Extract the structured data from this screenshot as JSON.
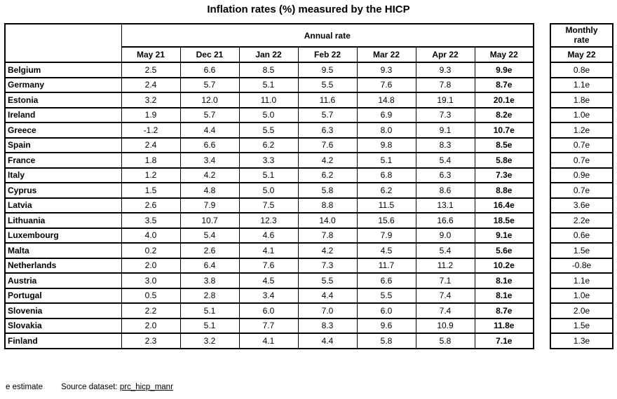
{
  "title": "Inflation rates (%) measured by the HICP",
  "table": {
    "annual_header": "Annual rate",
    "monthly_header": "Monthly rate",
    "annual_columns": [
      "May 21",
      "Dec 21",
      "Jan 22",
      "Feb 22",
      "Mar 22",
      "Apr 22",
      "May 22"
    ],
    "monthly_column": "May 22",
    "rows": [
      {
        "country": "Belgium",
        "annual": [
          "2.5",
          "6.6",
          "8.5",
          "9.5",
          "9.3",
          "9.3",
          "9.9e"
        ],
        "monthly": "0.8e"
      },
      {
        "country": "Germany",
        "annual": [
          "2.4",
          "5.7",
          "5.1",
          "5.5",
          "7.6",
          "7.8",
          "8.7e"
        ],
        "monthly": "1.1e"
      },
      {
        "country": "Estonia",
        "annual": [
          "3.2",
          "12.0",
          "11.0",
          "11.6",
          "14.8",
          "19.1",
          "20.1e"
        ],
        "monthly": "1.8e"
      },
      {
        "country": "Ireland",
        "annual": [
          "1.9",
          "5.7",
          "5.0",
          "5.7",
          "6.9",
          "7.3",
          "8.2e"
        ],
        "monthly": "1.0e"
      },
      {
        "country": "Greece",
        "annual": [
          "-1.2",
          "4.4",
          "5.5",
          "6.3",
          "8.0",
          "9.1",
          "10.7e"
        ],
        "monthly": "1.2e"
      },
      {
        "country": "Spain",
        "annual": [
          "2.4",
          "6.6",
          "6.2",
          "7.6",
          "9.8",
          "8.3",
          "8.5e"
        ],
        "monthly": "0.7e"
      },
      {
        "country": "France",
        "annual": [
          "1.8",
          "3.4",
          "3.3",
          "4.2",
          "5.1",
          "5.4",
          "5.8e"
        ],
        "monthly": "0.7e"
      },
      {
        "country": "Italy",
        "annual": [
          "1.2",
          "4.2",
          "5.1",
          "6.2",
          "6.8",
          "6.3",
          "7.3e"
        ],
        "monthly": "0.9e"
      },
      {
        "country": "Cyprus",
        "annual": [
          "1.5",
          "4.8",
          "5.0",
          "5.8",
          "6.2",
          "8.6",
          "8.8e"
        ],
        "monthly": "0.7e"
      },
      {
        "country": "Latvia",
        "annual": [
          "2.6",
          "7.9",
          "7.5",
          "8.8",
          "11.5",
          "13.1",
          "16.4e"
        ],
        "monthly": "3.6e"
      },
      {
        "country": "Lithuania",
        "annual": [
          "3.5",
          "10.7",
          "12.3",
          "14.0",
          "15.6",
          "16.6",
          "18.5e"
        ],
        "monthly": "2.2e"
      },
      {
        "country": "Luxembourg",
        "annual": [
          "4.0",
          "5.4",
          "4.6",
          "7.8",
          "7.9",
          "9.0",
          "9.1e"
        ],
        "monthly": "0.6e"
      },
      {
        "country": "Malta",
        "annual": [
          "0.2",
          "2.6",
          "4.1",
          "4.2",
          "4.5",
          "5.4",
          "5.6e"
        ],
        "monthly": "1.5e"
      },
      {
        "country": "Netherlands",
        "annual": [
          "2.0",
          "6.4",
          "7.6",
          "7.3",
          "11.7",
          "11.2",
          "10.2e"
        ],
        "monthly": "-0.8e"
      },
      {
        "country": "Austria",
        "annual": [
          "3.0",
          "3.8",
          "4.5",
          "5.5",
          "6.6",
          "7.1",
          "8.1e"
        ],
        "monthly": "1.1e"
      },
      {
        "country": "Portugal",
        "annual": [
          "0.5",
          "2.8",
          "3.4",
          "4.4",
          "5.5",
          "7.4",
          "8.1e"
        ],
        "monthly": "1.0e"
      },
      {
        "country": "Slovenia",
        "annual": [
          "2.2",
          "5.1",
          "6.0",
          "7.0",
          "6.0",
          "7.4",
          "8.7e"
        ],
        "monthly": "2.0e"
      },
      {
        "country": "Slovakia",
        "annual": [
          "2.0",
          "5.1",
          "7.7",
          "8.3",
          "9.6",
          "10.9",
          "11.8e"
        ],
        "monthly": "1.5e"
      },
      {
        "country": "Finland",
        "annual": [
          "2.3",
          "3.2",
          "4.1",
          "4.4",
          "5.8",
          "5.8",
          "7.1e"
        ],
        "monthly": "1.3e"
      }
    ]
  },
  "footer": {
    "estimate_note": "e estimate",
    "source_label": "Source dataset:",
    "source_link": "prc_hicp_manr"
  }
}
